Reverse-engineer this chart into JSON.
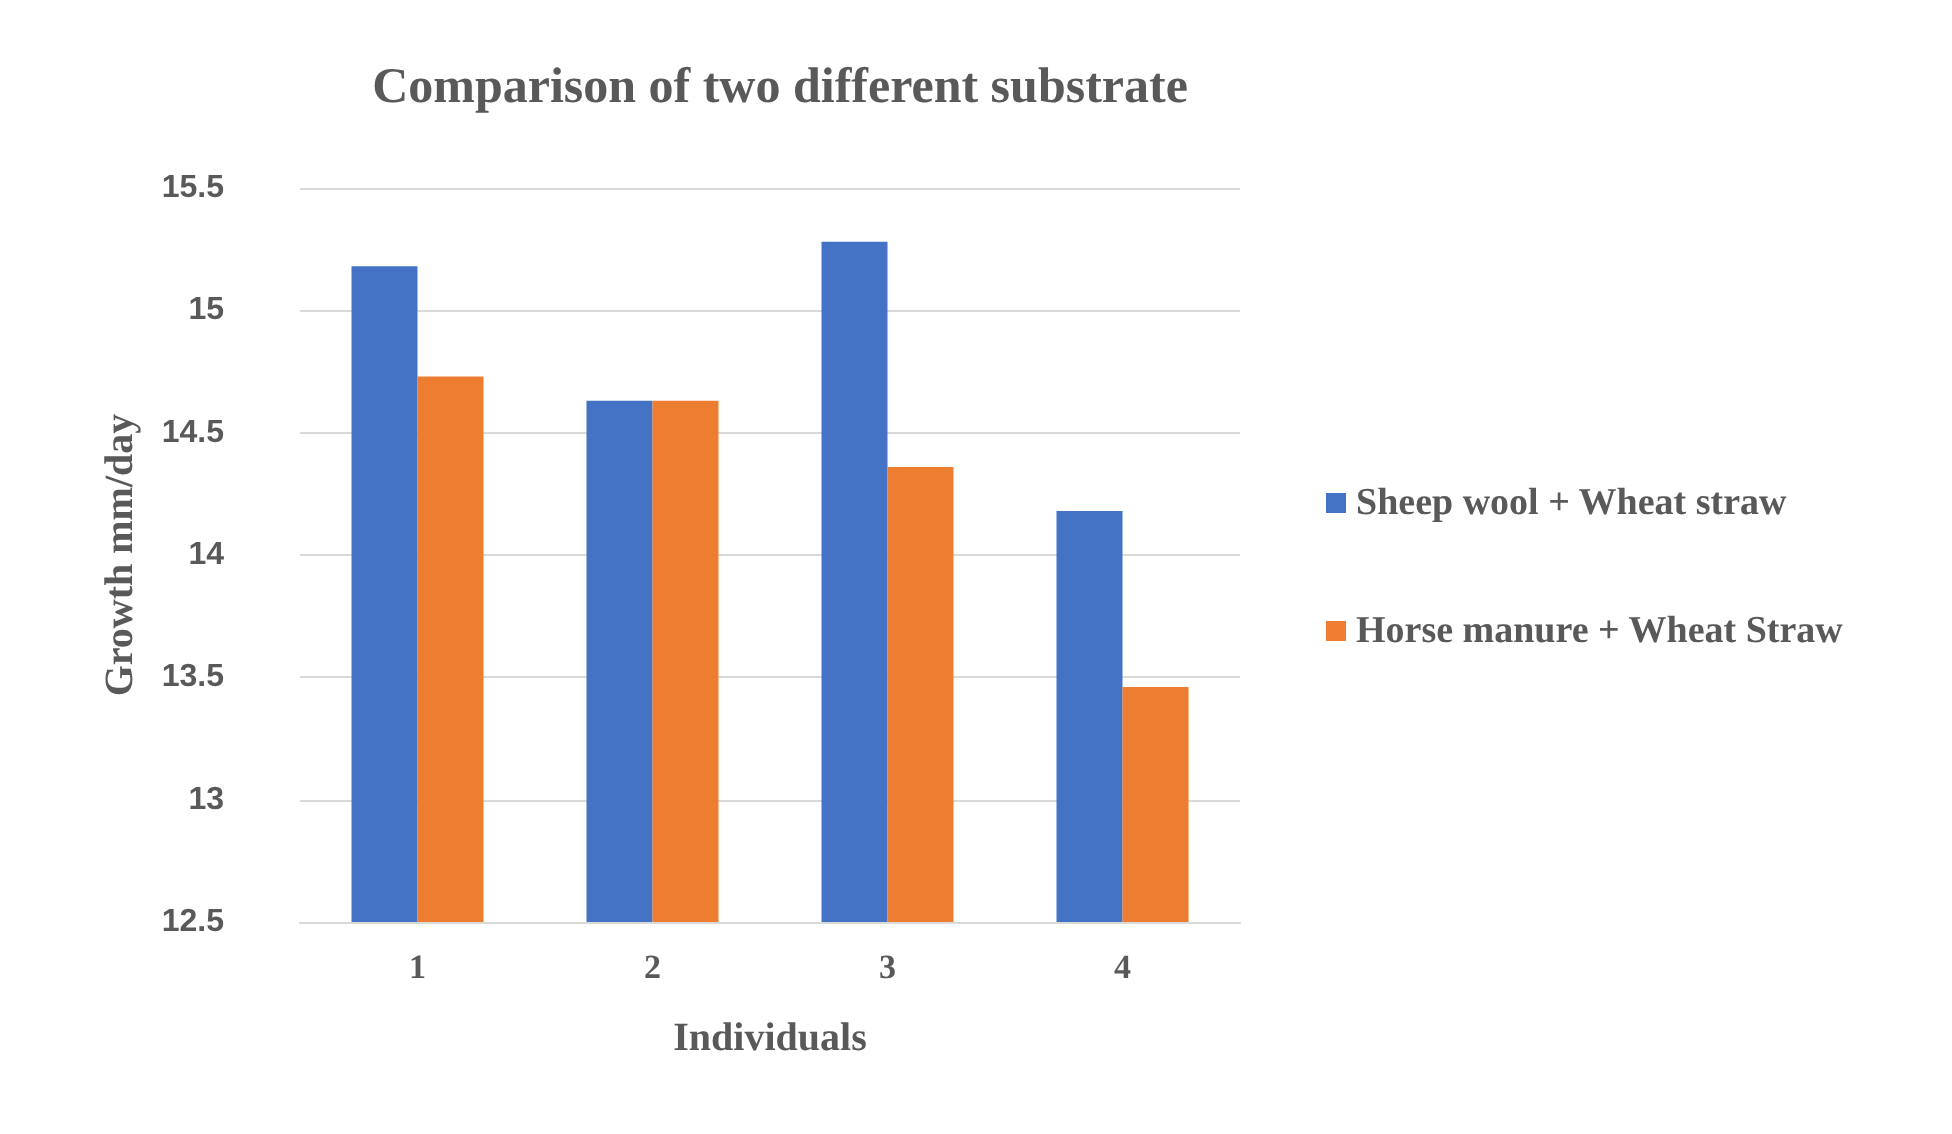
{
  "chart_data": {
    "type": "bar",
    "title": "Comparison of two different substrate",
    "xlabel": "Individuals",
    "ylabel": "Growth mm/day",
    "categories": [
      "1",
      "2",
      "3",
      "4"
    ],
    "series": [
      {
        "name": "Sheep wool + Wheat straw",
        "color": "#4472c4",
        "values": [
          15.18,
          14.63,
          15.28,
          14.18
        ]
      },
      {
        "name": "Horse manure + Wheat Straw",
        "color": "#ed7d31",
        "values": [
          14.73,
          14.63,
          14.36,
          13.46
        ]
      }
    ],
    "ylim": [
      12.5,
      15.5
    ],
    "yticks": [
      12.5,
      13,
      13.5,
      14,
      14.5,
      15,
      15.5
    ],
    "grid": "y",
    "legend": "right"
  }
}
